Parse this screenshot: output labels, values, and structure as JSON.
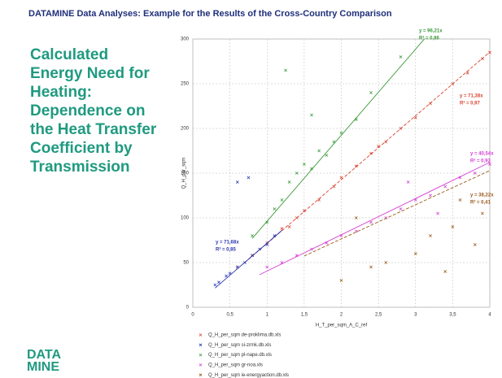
{
  "slide_title": "DATAMINE Data Analyses: Example for the Results of the Cross-Country Comparison",
  "heading_lines": [
    "Calculated",
    "Energy Need for",
    "Heating:",
    "Dependence on",
    "the Heat Transfer",
    "Coefficient by",
    "Transmission"
  ],
  "logo_lines": [
    "DATA",
    "MINE"
  ],
  "chart_data": {
    "type": "scatter",
    "x_label": "H_T_per_sqm_A_C_ref",
    "y_label": "Q_H_per_sqm",
    "xlim": [
      0,
      4
    ],
    "ylim": [
      0,
      300
    ],
    "xticks": [
      0,
      {
        "value": 0.5,
        "label": "0,5"
      },
      1,
      {
        "value": 1.5,
        "label": "1,5"
      },
      2,
      {
        "value": 2.5,
        "label": "2,5"
      },
      3,
      {
        "value": 3.5,
        "label": "3,5"
      },
      4
    ],
    "yticks": [
      0,
      50,
      100,
      150,
      200,
      250,
      300
    ],
    "grid": true,
    "series": [
      {
        "name": "Q_H_per_sqm de-proklima.db.xls",
        "color": "#d9452f",
        "x": [
          0.6,
          0.8,
          1.0,
          1.2,
          1.4,
          1.5,
          1.7,
          1.9,
          2.0,
          2.2,
          2.4,
          2.6,
          2.8,
          3.0,
          3.2,
          3.5,
          3.7,
          3.9,
          4.0,
          1.3,
          2.5
        ],
        "values": [
          45,
          58,
          72,
          88,
          100,
          108,
          120,
          135,
          145,
          158,
          172,
          185,
          200,
          212,
          228,
          250,
          262,
          278,
          285,
          90,
          180
        ],
        "trend": {
          "slope": 71.38,
          "label": "y = 71,38x",
          "r2_label": "R² = 0,97"
        }
      },
      {
        "name": "Q_H_per_sqm si-zrmk.db.xls",
        "color": "#2a35b0",
        "x": [
          0.3,
          0.35,
          0.45,
          0.5,
          0.6,
          0.7,
          0.8,
          0.9,
          1.0,
          1.1,
          0.6,
          0.75
        ],
        "values": [
          25,
          28,
          35,
          38,
          45,
          50,
          58,
          65,
          70,
          80,
          140,
          145
        ],
        "trend": {
          "slope": 71.68,
          "label": "y = 71,68x",
          "r2_label": "R² = 0,85"
        }
      },
      {
        "name": "Q_H_per_sqm pl-nape.db.xls",
        "color": "#3a9a3a",
        "x": [
          0.8,
          1.0,
          1.1,
          1.2,
          1.3,
          1.4,
          1.5,
          1.6,
          1.7,
          1.8,
          1.9,
          2.0,
          2.2,
          2.4,
          2.8,
          1.25,
          1.6
        ],
        "values": [
          80,
          95,
          110,
          120,
          140,
          150,
          160,
          155,
          175,
          170,
          185,
          195,
          210,
          240,
          280,
          265,
          215
        ],
        "trend": {
          "slope": 96.21,
          "label": "y = 96,21x",
          "r2_label": "R² = 0,86"
        }
      },
      {
        "name": "Q_H_per_sqm gr-noa.xls",
        "color": "#d43fd4",
        "x": [
          1.0,
          1.2,
          1.4,
          1.6,
          1.8,
          2.0,
          2.2,
          2.4,
          2.6,
          2.8,
          3.0,
          3.2,
          3.4,
          3.6,
          3.8,
          4.0,
          2.9,
          3.3
        ],
        "values": [
          45,
          50,
          58,
          65,
          72,
          80,
          85,
          95,
          100,
          110,
          120,
          125,
          135,
          145,
          150,
          160,
          140,
          105
        ],
        "trend": {
          "slope": 40.54,
          "label": "y = 40,54x",
          "r2_label": "R² = 0,93"
        }
      },
      {
        "name": "Q_H_per_sqm ie-energyaction.db.xls",
        "color": "#9a5a1a",
        "x": [
          2.0,
          2.4,
          2.6,
          3.0,
          3.2,
          3.4,
          3.6,
          3.8,
          3.9,
          2.2,
          3.5
        ],
        "values": [
          30,
          45,
          50,
          60,
          80,
          40,
          120,
          70,
          105,
          100,
          90
        ],
        "trend": {
          "slope": 38.22,
          "label": "y = 38,22x",
          "r2_label": "R² = 0,41"
        }
      }
    ]
  }
}
